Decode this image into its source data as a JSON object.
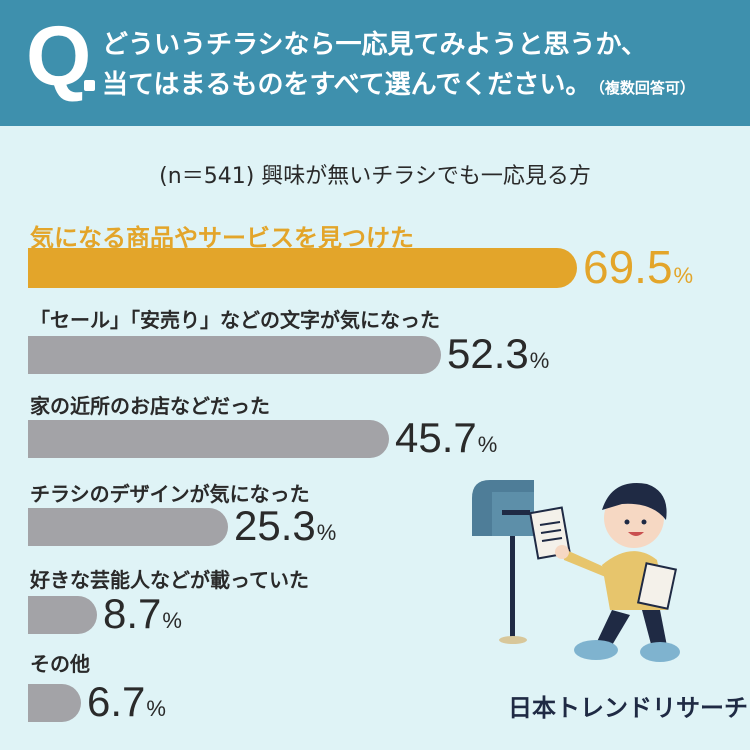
{
  "header": {
    "q_mark": "Q",
    "line1": "どういうチラシなら一応見てみようと思うか、",
    "line2": "当てはまるものをすべて選んでください。",
    "note": "（複数回答可）"
  },
  "subtitle": "(n＝541) 興味が無いチラシでも一応見る方",
  "brand": "日本トレンドリサーチ",
  "colors": {
    "highlight": "#e3a52a",
    "bar": "#a3a3a7",
    "header": "#3e90ad",
    "background": "#dff3f6"
  },
  "chart_data": {
    "type": "bar",
    "orientation": "horizontal",
    "unit": "%",
    "categories": [
      "気になる商品やサービスを見つけた",
      "「セール」「安売り」などの文字が気になった",
      "家の近所のお店などだった",
      "チラシのデザインが気になった",
      "好きな芸能人などが載っていた",
      "その他"
    ],
    "values": [
      69.5,
      52.3,
      45.7,
      25.3,
      8.7,
      6.7
    ],
    "value_labels": [
      "69.5",
      "52.3",
      "45.7",
      "25.3",
      "8.7",
      "6.7"
    ],
    "highlight_index": 0
  }
}
